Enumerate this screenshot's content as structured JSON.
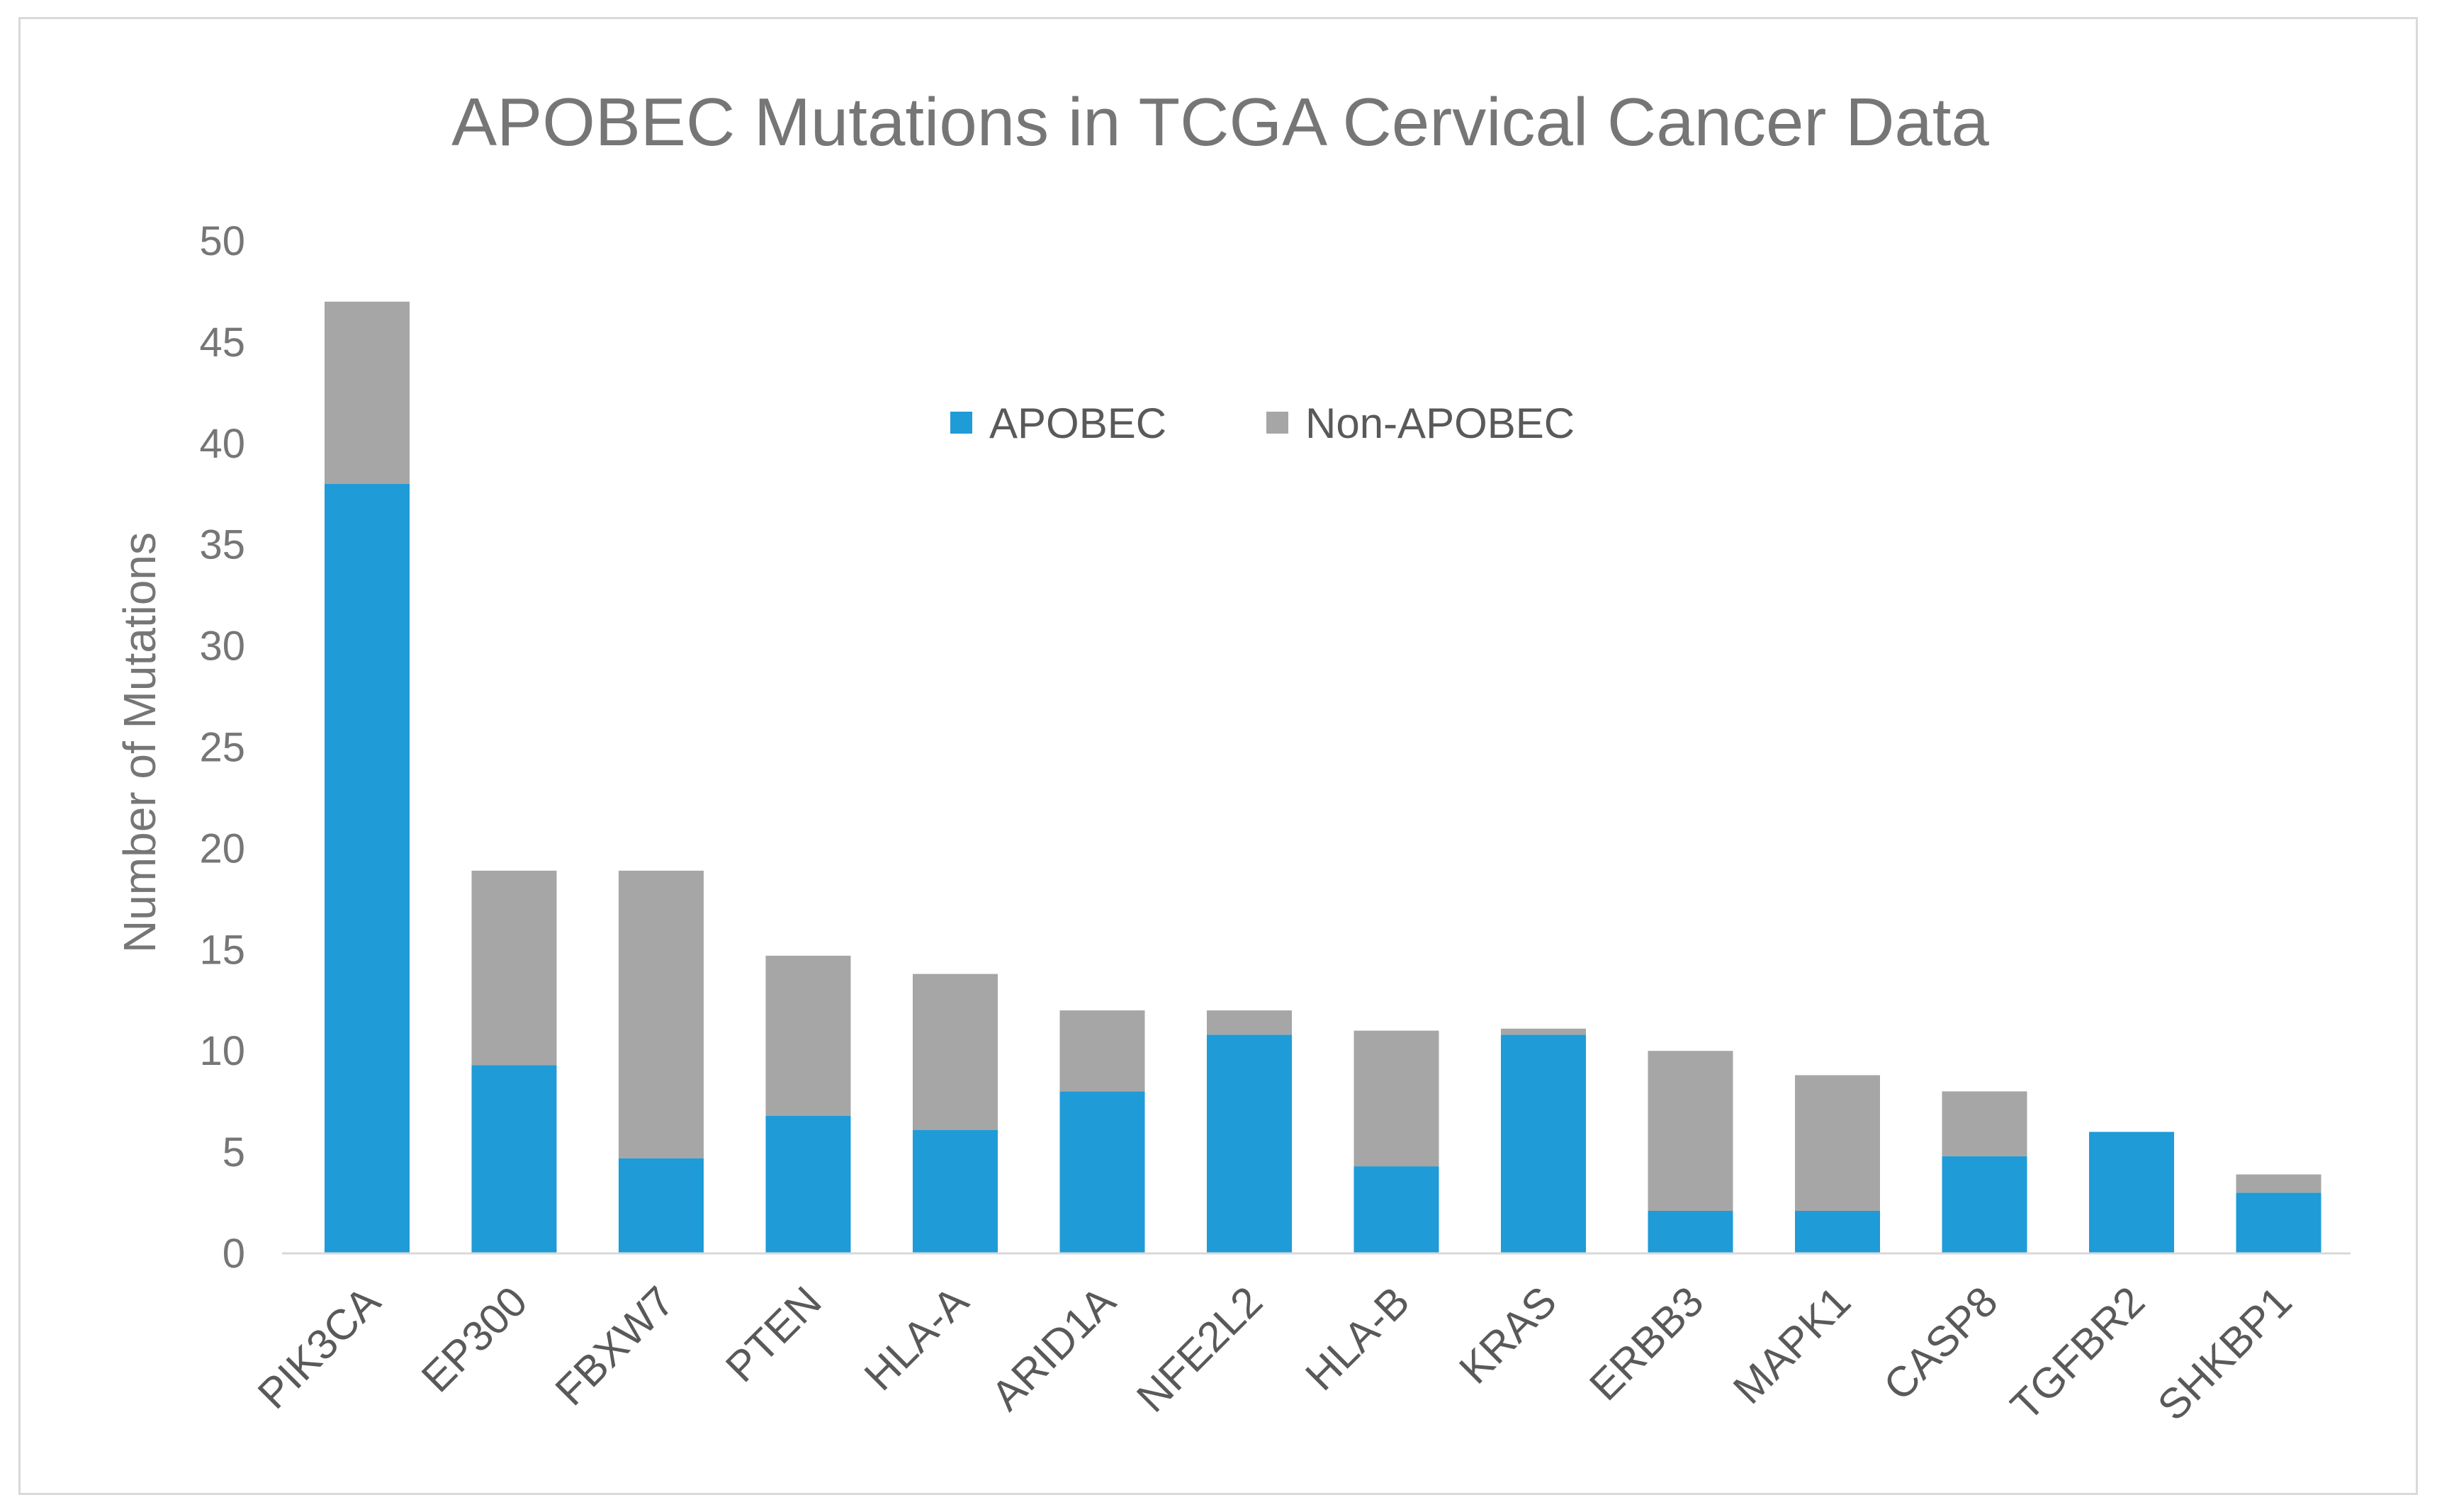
{
  "chart_data": {
    "type": "bar",
    "stacked": true,
    "title": "APOBEC Mutations in TCGA Cervical Cancer Data",
    "xlabel": "",
    "ylabel": "Number of Mutations",
    "ylim": [
      0,
      50
    ],
    "yticks": [
      "0",
      "5",
      "10",
      "15",
      "20",
      "25",
      "30",
      "35",
      "40",
      "45",
      "50"
    ],
    "categories": [
      "PIK3CA",
      "EP300",
      "FBXW7",
      "PTEN",
      "HLA-A",
      "ARID1A",
      "NFE2L2",
      "HLA-B",
      "KRAS",
      "ERBB3",
      "MAPK1",
      "CASP8",
      "TGFBR2",
      "SHKBP1"
    ],
    "series": [
      {
        "name": "APOBEC",
        "color": "#1f9bd7",
        "values": [
          38,
          9.3,
          4.7,
          6.8,
          6.1,
          8.0,
          10.8,
          4.3,
          10.8,
          2.1,
          2.1,
          4.8,
          6.0,
          3.0
        ]
      },
      {
        "name": "Non-APOBEC",
        "color": "#a6a6a6",
        "values": [
          9,
          9.6,
          14.2,
          7.9,
          7.7,
          4.0,
          1.2,
          6.7,
          0.3,
          7.9,
          6.7,
          3.2,
          0,
          0.9
        ]
      }
    ],
    "legend": {
      "position": "top-center",
      "items": [
        "APOBEC",
        "Non-APOBEC"
      ]
    },
    "grid": false
  }
}
